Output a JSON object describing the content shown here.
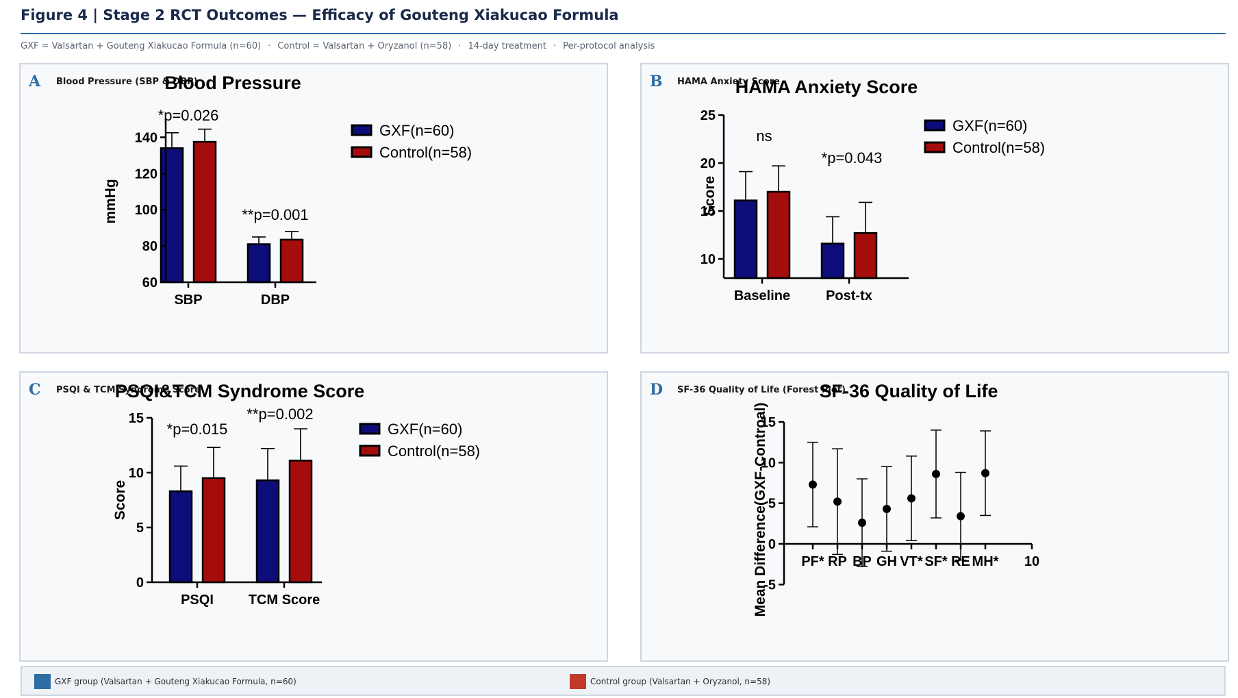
{
  "figure": {
    "title": "Figure 4  |  Stage 2 RCT Outcomes — Efficacy of Gouteng Xiakucao Formula",
    "subtitle_items": [
      "GXF = Valsartan + Gouteng Xiakucao Formula (n=60)",
      "Control = Valsartan + Oryzanol (n=58)",
      "14-day treatment",
      "Per-protocol analysis"
    ],
    "subtitle_separator": "·"
  },
  "colors": {
    "gxf": "#0d0d7a",
    "control": "#a50d0d",
    "accent": "#2e6da4",
    "footer_gxf": "#2e6da4",
    "footer_control": "#c0392b"
  },
  "panels": [
    {
      "letter": "A",
      "name": "Blood Pressure (SBP & DBP)"
    },
    {
      "letter": "B",
      "name": "HAMA Anxiety Score"
    },
    {
      "letter": "C",
      "name": "PSQI & TCM Syndrome Score"
    },
    {
      "letter": "D",
      "name": "SF-36 Quality of Life (Forest Plot)"
    }
  ],
  "footer": {
    "gxf_label": "GXF group (Valsartan + Gouteng Xiakucao Formula, n=60)",
    "control_label": "Control group (Valsartan + Oryzanol, n=58)"
  },
  "chart_data": [
    {
      "type": "bar",
      "title": "Blood Pressure",
      "xlabel": "",
      "ylabel": "mmHg",
      "categories": [
        "SBP",
        "DBP"
      ],
      "ylim": [
        60,
        150
      ],
      "yticks": [
        60,
        80,
        100,
        120,
        140
      ],
      "series": [
        {
          "name": "GXF(n=60)",
          "values": [
            134,
            81
          ],
          "error": [
            8.5,
            4
          ]
        },
        {
          "name": "Control(n=58)",
          "values": [
            137.5,
            83.5
          ],
          "error": [
            7,
            4.5
          ]
        }
      ],
      "annotations": [
        "*p=0.026",
        "**p=0.001"
      ],
      "legend": "top-right"
    },
    {
      "type": "bar",
      "title": "HAMA Anxiety Score",
      "xlabel": "",
      "ylabel": "Score",
      "categories": [
        "Baseline",
        "Post-tx"
      ],
      "ylim": [
        8,
        25
      ],
      "yticks": [
        10,
        15,
        20,
        25
      ],
      "series": [
        {
          "name": "GXF(n=60)",
          "values": [
            16.1,
            11.6
          ],
          "error": [
            3,
            2.8
          ]
        },
        {
          "name": "Control(n=58)",
          "values": [
            17,
            12.7
          ],
          "error": [
            2.7,
            3.2
          ]
        }
      ],
      "annotations": [
        "ns",
        "*p=0.043"
      ],
      "legend": "top-right"
    },
    {
      "type": "bar",
      "title": "PSQI&TCM Syndrome Score",
      "xlabel": "",
      "ylabel": "Score",
      "categories": [
        "PSQI",
        "TCM Score"
      ],
      "ylim": [
        0,
        15
      ],
      "yticks": [
        0,
        5,
        10,
        15
      ],
      "series": [
        {
          "name": "GXF(n=60)",
          "values": [
            8.3,
            9.3
          ],
          "error": [
            2.3,
            2.9
          ]
        },
        {
          "name": "Control(n=58)",
          "values": [
            9.5,
            11.1
          ],
          "error": [
            2.8,
            2.9
          ]
        }
      ],
      "annotations": [
        "*p=0.015",
        "**p=0.002"
      ],
      "legend": "top-right"
    },
    {
      "type": "scatter",
      "title": "SF-36 Quality of Life",
      "xlabel": "",
      "ylabel": "Mean Difference(GXF-Controal)",
      "categories": [
        "PF*",
        "RP",
        "BP",
        "GH",
        "VT*",
        "SF*",
        "RE",
        "MH*"
      ],
      "extra_xtick": "10",
      "ylim": [
        -5,
        15
      ],
      "yticks": [
        -5,
        0,
        5,
        10,
        15
      ],
      "values": [
        7.3,
        5.2,
        2.6,
        4.3,
        5.6,
        8.6,
        3.4,
        8.7
      ],
      "ci_low": [
        2.1,
        -1.3,
        -2.8,
        -0.9,
        0.4,
        3.2,
        -2,
        3.5
      ],
      "ci_high": [
        12.5,
        11.7,
        8,
        9.5,
        10.8,
        14,
        8.8,
        13.9
      ]
    }
  ]
}
